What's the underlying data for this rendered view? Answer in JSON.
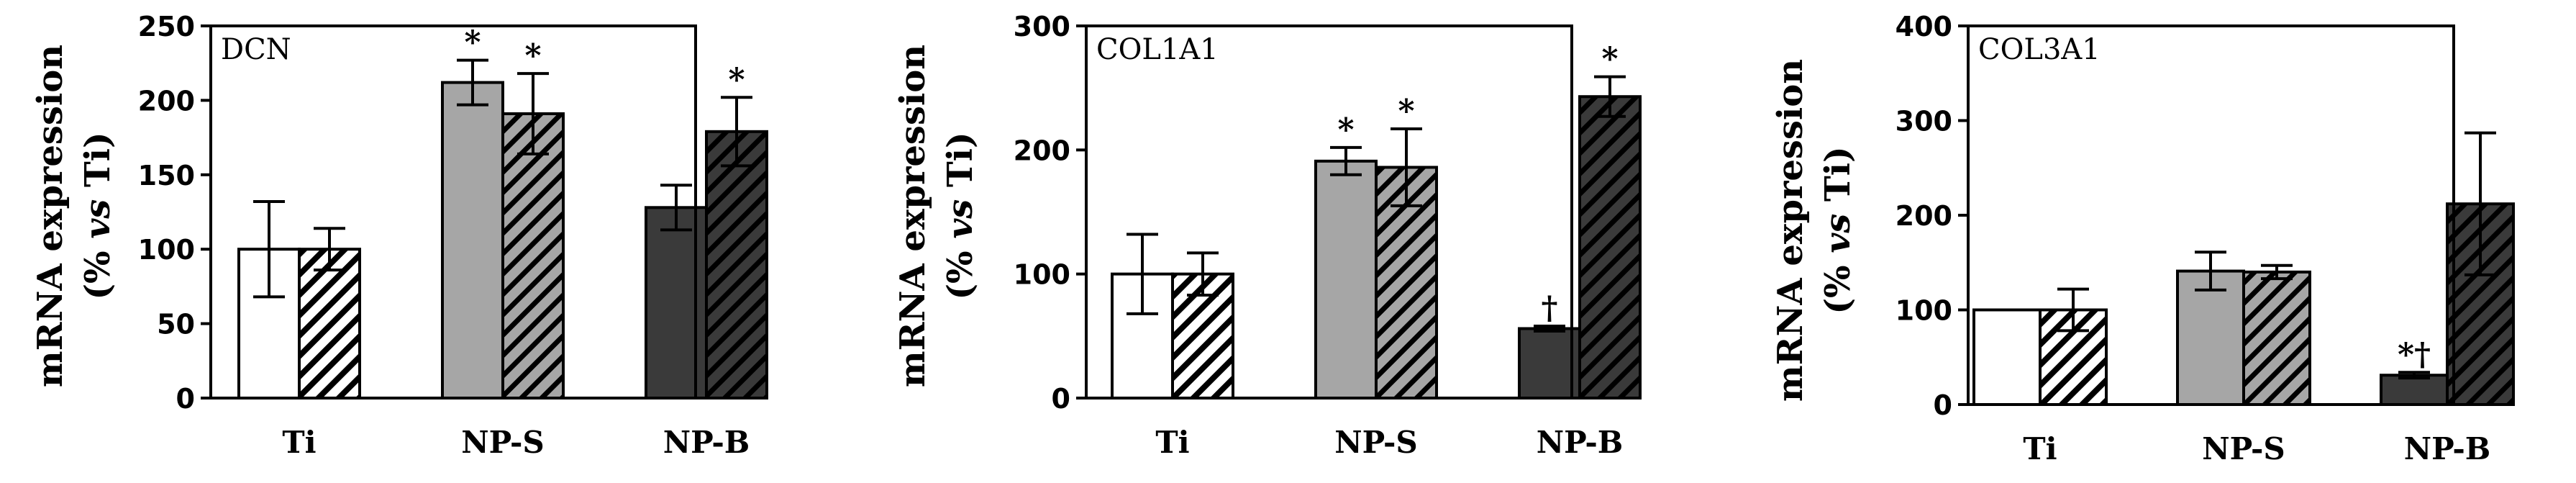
{
  "y_axis_label_line1": "mRNA expression",
  "y_axis_label_prefix": "(% ",
  "y_axis_label_vs": "vs",
  "y_axis_label_suffix": " Ti)",
  "colors": {
    "ti": "#ffffff",
    "nps": "#a6a6a6",
    "npb": "#3a3a3a",
    "outline": "#000000"
  },
  "chart_data": [
    {
      "type": "bar",
      "title": "DCN",
      "categories": [
        "Ti",
        "NP-S",
        "NP-B"
      ],
      "ylim": [
        0,
        250
      ],
      "yticks": [
        0,
        50,
        100,
        150,
        200,
        250
      ],
      "series": [
        {
          "fill": "solid",
          "values": [
            100,
            212,
            128
          ],
          "errors": [
            32,
            15,
            15
          ],
          "marks": [
            "",
            "*",
            ""
          ]
        },
        {
          "fill": "hatched",
          "values": [
            100,
            191,
            179
          ],
          "errors": [
            14,
            27,
            23
          ],
          "marks": [
            "",
            "*",
            "*"
          ]
        }
      ]
    },
    {
      "type": "bar",
      "title": "COL1A1",
      "categories": [
        "Ti",
        "NP-S",
        "NP-B"
      ],
      "ylim": [
        0,
        300
      ],
      "yticks": [
        0,
        100,
        200,
        300
      ],
      "series": [
        {
          "fill": "solid",
          "values": [
            100,
            191,
            56
          ],
          "errors": [
            32,
            11,
            2
          ],
          "marks": [
            "",
            "*",
            "†"
          ]
        },
        {
          "fill": "hatched",
          "values": [
            100,
            186,
            243
          ],
          "errors": [
            17,
            31,
            16
          ],
          "marks": [
            "",
            "*",
            "*"
          ]
        }
      ]
    },
    {
      "type": "bar",
      "title": "COL3A1",
      "categories": [
        "Ti",
        "NP-S",
        "NP-B"
      ],
      "ylim": [
        0,
        400
      ],
      "yticks": [
        0,
        100,
        200,
        300,
        400
      ],
      "series": [
        {
          "fill": "solid",
          "values": [
            100,
            141,
            31
          ],
          "errors": [
            0,
            20,
            3
          ],
          "marks": [
            "",
            "",
            "*†"
          ]
        },
        {
          "fill": "hatched",
          "values": [
            100,
            140,
            212
          ],
          "errors": [
            22,
            7,
            75
          ],
          "marks": [
            "",
            "",
            ""
          ]
        }
      ]
    }
  ]
}
